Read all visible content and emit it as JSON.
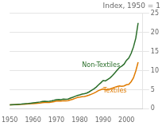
{
  "chart_data": {
    "type": "line",
    "title": "Index, 1950 = 1",
    "x": [
      1950,
      1951,
      1952,
      1953,
      1954,
      1955,
      1956,
      1957,
      1958,
      1959,
      1960,
      1961,
      1962,
      1963,
      1964,
      1965,
      1966,
      1967,
      1968,
      1969,
      1970,
      1971,
      1972,
      1973,
      1974,
      1975,
      1976,
      1977,
      1978,
      1979,
      1980,
      1981,
      1982,
      1983,
      1984,
      1985,
      1986,
      1987,
      1988,
      1989,
      1990,
      1991,
      1992,
      1993,
      1994,
      1995,
      1996,
      1997,
      1998,
      1999,
      2000,
      2001,
      2002,
      2003,
      2004,
      2005
    ],
    "series": [
      {
        "name": "Non-Textiles",
        "color": "#2a6e2a",
        "values": [
          1.0,
          1.07,
          1.1,
          1.14,
          1.18,
          1.23,
          1.3,
          1.36,
          1.4,
          1.46,
          1.53,
          1.6,
          1.68,
          1.78,
          1.9,
          1.95,
          1.93,
          1.98,
          2.08,
          2.22,
          2.38,
          2.44,
          2.4,
          2.52,
          2.48,
          2.56,
          2.8,
          3.0,
          3.25,
          3.5,
          3.65,
          3.85,
          3.95,
          4.1,
          4.42,
          4.8,
          5.2,
          5.65,
          6.25,
          6.8,
          7.4,
          7.3,
          7.7,
          8.1,
          8.7,
          9.4,
          10.1,
          10.8,
          11.2,
          11.7,
          12.7,
          13.3,
          14.5,
          16.2,
          18.5,
          22.5
        ]
      },
      {
        "name": "Textiles",
        "color": "#e07b00",
        "values": [
          1.0,
          1.04,
          1.06,
          1.09,
          1.12,
          1.16,
          1.2,
          1.25,
          1.28,
          1.32,
          1.36,
          1.4,
          1.45,
          1.5,
          1.6,
          1.65,
          1.63,
          1.67,
          1.75,
          1.86,
          2.0,
          2.05,
          2.02,
          2.1,
          2.06,
          2.14,
          2.32,
          2.5,
          2.72,
          2.95,
          3.05,
          3.18,
          3.24,
          3.36,
          3.58,
          3.82,
          4.08,
          4.38,
          4.76,
          4.98,
          5.2,
          4.98,
          5.1,
          5.2,
          5.4,
          5.65,
          5.82,
          6.0,
          5.9,
          6.0,
          6.3,
          6.4,
          7.1,
          8.1,
          9.9,
          12.2
        ]
      }
    ],
    "xlim": [
      1950,
      2007
    ],
    "ylim": [
      0,
      25
    ],
    "xticks": [
      1950,
      1960,
      1970,
      1980,
      1990,
      2000
    ],
    "yticks": [
      0,
      5,
      10,
      15,
      20,
      25
    ],
    "grid": "y",
    "annotations": [
      {
        "text": "Non-Textiles",
        "x": 1981,
        "y": 10.5,
        "color": "#2a6e2a"
      },
      {
        "text": "Textiles",
        "x": 1990,
        "y": 3.8,
        "color": "#e07b00"
      }
    ]
  }
}
